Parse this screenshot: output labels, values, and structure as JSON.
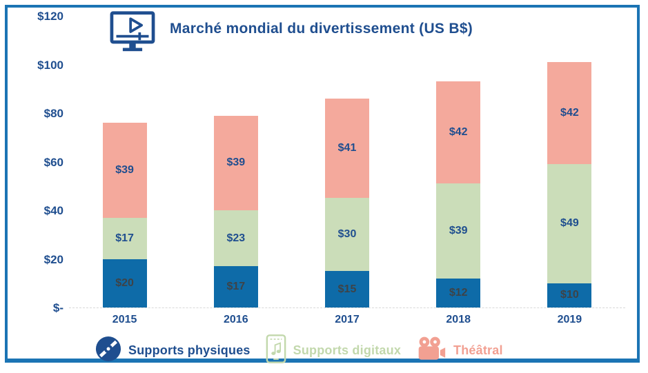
{
  "title": {
    "text": "Marché mondial du divertissement  (US B$)",
    "color": "#1F4E8F",
    "icon": "video-monitor-icon"
  },
  "frame": {
    "border_color": "#1B74B4"
  },
  "chart_data": {
    "type": "bar",
    "stacked": true,
    "title": "Marché mondial du divertissement (US B$)",
    "categories": [
      "2015",
      "2016",
      "2017",
      "2018",
      "2019"
    ],
    "series": [
      {
        "name": "Supports physiques",
        "color": "#0E6BA8",
        "label_color": "#3E4347",
        "values": [
          20,
          17,
          15,
          12,
          10
        ]
      },
      {
        "name": "Supports digitaux",
        "color": "#CBDDB9",
        "label_color": "#1F4E8F",
        "values": [
          17,
          23,
          30,
          39,
          49
        ]
      },
      {
        "name": "Théâtral",
        "color": "#F4A99C",
        "label_color": "#1F4E8F",
        "values": [
          39,
          39,
          41,
          42,
          42
        ]
      }
    ],
    "totals": [
      76,
      79,
      86,
      93,
      101
    ],
    "value_prefix": "$",
    "y_ticks": [
      {
        "label": "$120",
        "value": 120
      },
      {
        "label": "$100",
        "value": 100
      },
      {
        "label": "$80",
        "value": 80
      },
      {
        "label": "$60",
        "value": 60
      },
      {
        "label": "$40",
        "value": 40
      },
      {
        "label": "$20",
        "value": 20
      },
      {
        "label": "$-",
        "value": 0
      }
    ],
    "ylim": [
      0,
      120
    ],
    "xlabel": "",
    "ylabel": "",
    "grid": false,
    "legend_position": "bottom"
  },
  "legend": {
    "items": [
      {
        "label": "Supports physiques",
        "icon": "disc-icon",
        "color": "#1F4E8F"
      },
      {
        "label": "Supports digitaux",
        "icon": "phone-music-icon",
        "color": "#C2D8AC"
      },
      {
        "label": "Théâtral",
        "icon": "movie-camera-icon",
        "color": "#F2A092"
      }
    ]
  }
}
